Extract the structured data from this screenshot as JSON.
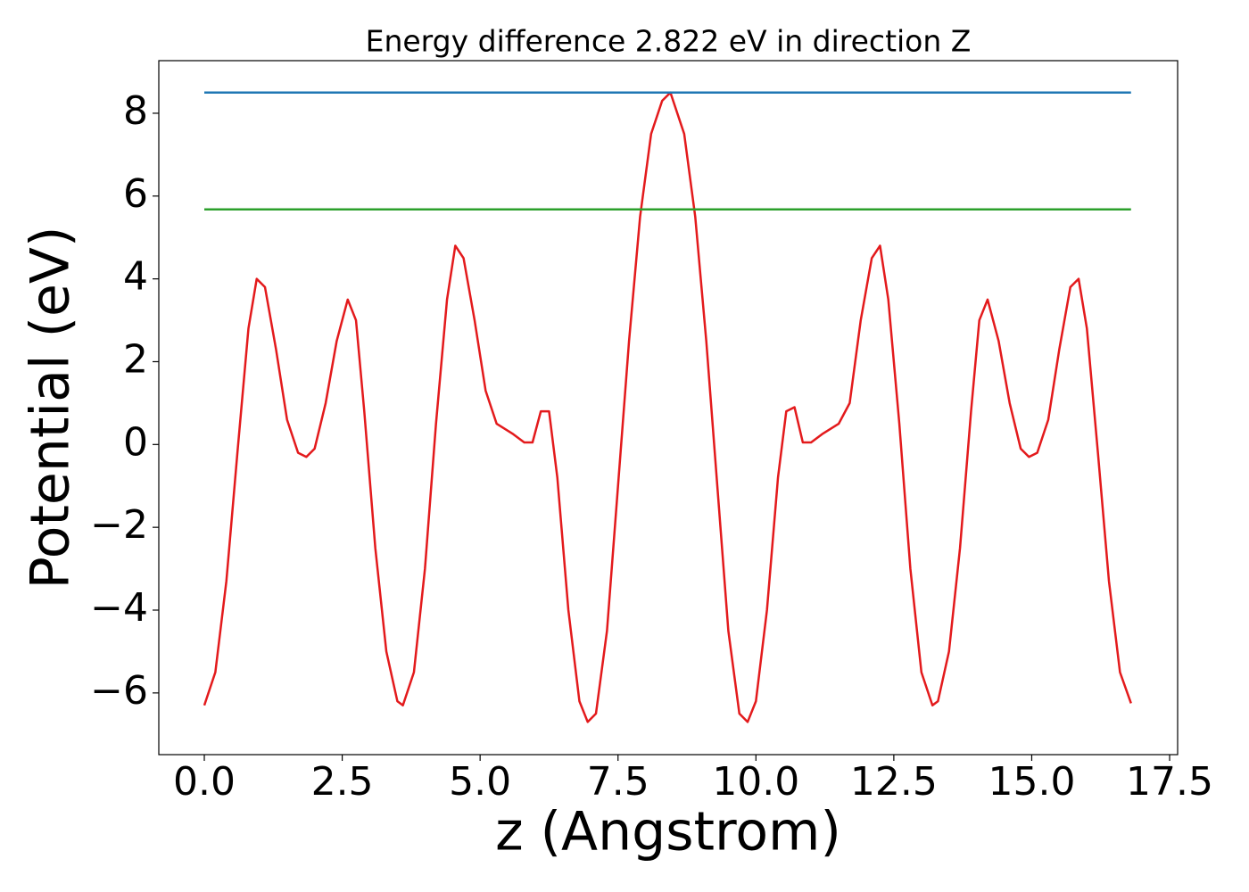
{
  "chart_data": {
    "type": "line",
    "title": "Energy difference 2.822 eV in direction Z",
    "x_label": "z (Angstrom)",
    "y_label": "Potential (eV)",
    "xlim": [
      -0.825,
      17.645
    ],
    "ylim": [
      -7.49,
      9.27
    ],
    "xticks": [
      {
        "value": 0,
        "label": "0.0"
      },
      2.5,
      {
        "value": 5,
        "label": "5.0"
      },
      7.5,
      {
        "value": 10,
        "label": "10.0"
      },
      12.5,
      {
        "value": 15,
        "label": "15.0"
      },
      17.5
    ],
    "yticks": [
      {
        "value": -6,
        "label": "−6"
      },
      {
        "value": -4,
        "label": "−4"
      },
      {
        "value": -2,
        "label": "−2"
      },
      0,
      2,
      4,
      6,
      8
    ],
    "grid": false,
    "series": [
      {
        "color": "#e31a1c",
        "x": [
          0.0,
          0.2,
          0.4,
          0.6,
          0.8,
          0.95,
          1.1,
          1.3,
          1.5,
          1.7,
          1.85,
          2.0,
          2.2,
          2.4,
          2.6,
          2.75,
          2.9,
          3.1,
          3.3,
          3.5,
          3.6,
          3.8,
          4.0,
          4.2,
          4.4,
          4.55,
          4.7,
          4.9,
          5.1,
          5.3,
          5.6,
          5.8,
          5.95,
          6.1,
          6.25,
          6.4,
          6.6,
          6.8,
          6.95,
          7.1,
          7.3,
          7.5,
          7.7,
          7.9,
          8.1,
          8.3,
          8.45,
          8.7,
          8.9,
          9.1,
          9.3,
          9.5,
          9.7,
          9.85,
          10.0,
          10.2,
          10.4,
          10.55,
          10.7,
          10.85,
          11.0,
          11.2,
          11.5,
          11.7,
          11.9,
          12.1,
          12.25,
          12.4,
          12.6,
          12.8,
          13.0,
          13.2,
          13.3,
          13.5,
          13.7,
          13.9,
          14.05,
          14.2,
          14.4,
          14.6,
          14.8,
          14.95,
          15.1,
          15.3,
          15.5,
          15.7,
          15.85,
          16.0,
          16.2,
          16.4,
          16.6,
          16.8
        ],
        "values": [
          -6.3,
          -5.5,
          -3.3,
          -0.2,
          2.8,
          4.0,
          3.8,
          2.3,
          0.6,
          -0.2,
          -0.3,
          -0.1,
          1.0,
          2.5,
          3.5,
          3.0,
          0.8,
          -2.5,
          -5.0,
          -6.2,
          -6.3,
          -5.5,
          -3.0,
          0.5,
          3.5,
          4.8,
          4.5,
          3.0,
          1.3,
          0.5,
          0.25,
          0.05,
          0.05,
          0.8,
          0.8,
          -0.8,
          -4.0,
          -6.2,
          -6.7,
          -6.5,
          -4.5,
          -1.0,
          2.5,
          5.5,
          7.5,
          8.3,
          8.5,
          7.5,
          5.5,
          2.5,
          -1.0,
          -4.5,
          -6.5,
          -6.7,
          -6.2,
          -4.0,
          -0.8,
          0.8,
          0.9,
          0.05,
          0.05,
          0.25,
          0.5,
          1.0,
          3.0,
          4.5,
          4.8,
          3.5,
          0.5,
          -3.0,
          -5.5,
          -6.3,
          -6.2,
          -5.0,
          -2.5,
          0.8,
          3.0,
          3.5,
          2.5,
          1.0,
          -0.1,
          -0.3,
          -0.2,
          0.6,
          2.3,
          3.8,
          4.0,
          2.8,
          -0.2,
          -3.3,
          -5.5,
          -6.25
        ]
      },
      {
        "color": "#1f77b4",
        "x": [
          0.0,
          16.8
        ],
        "values": [
          8.5,
          8.5
        ]
      },
      {
        "color": "#2ca02c",
        "x": [
          0.0,
          16.8
        ],
        "values": [
          5.678,
          5.678
        ]
      }
    ]
  }
}
